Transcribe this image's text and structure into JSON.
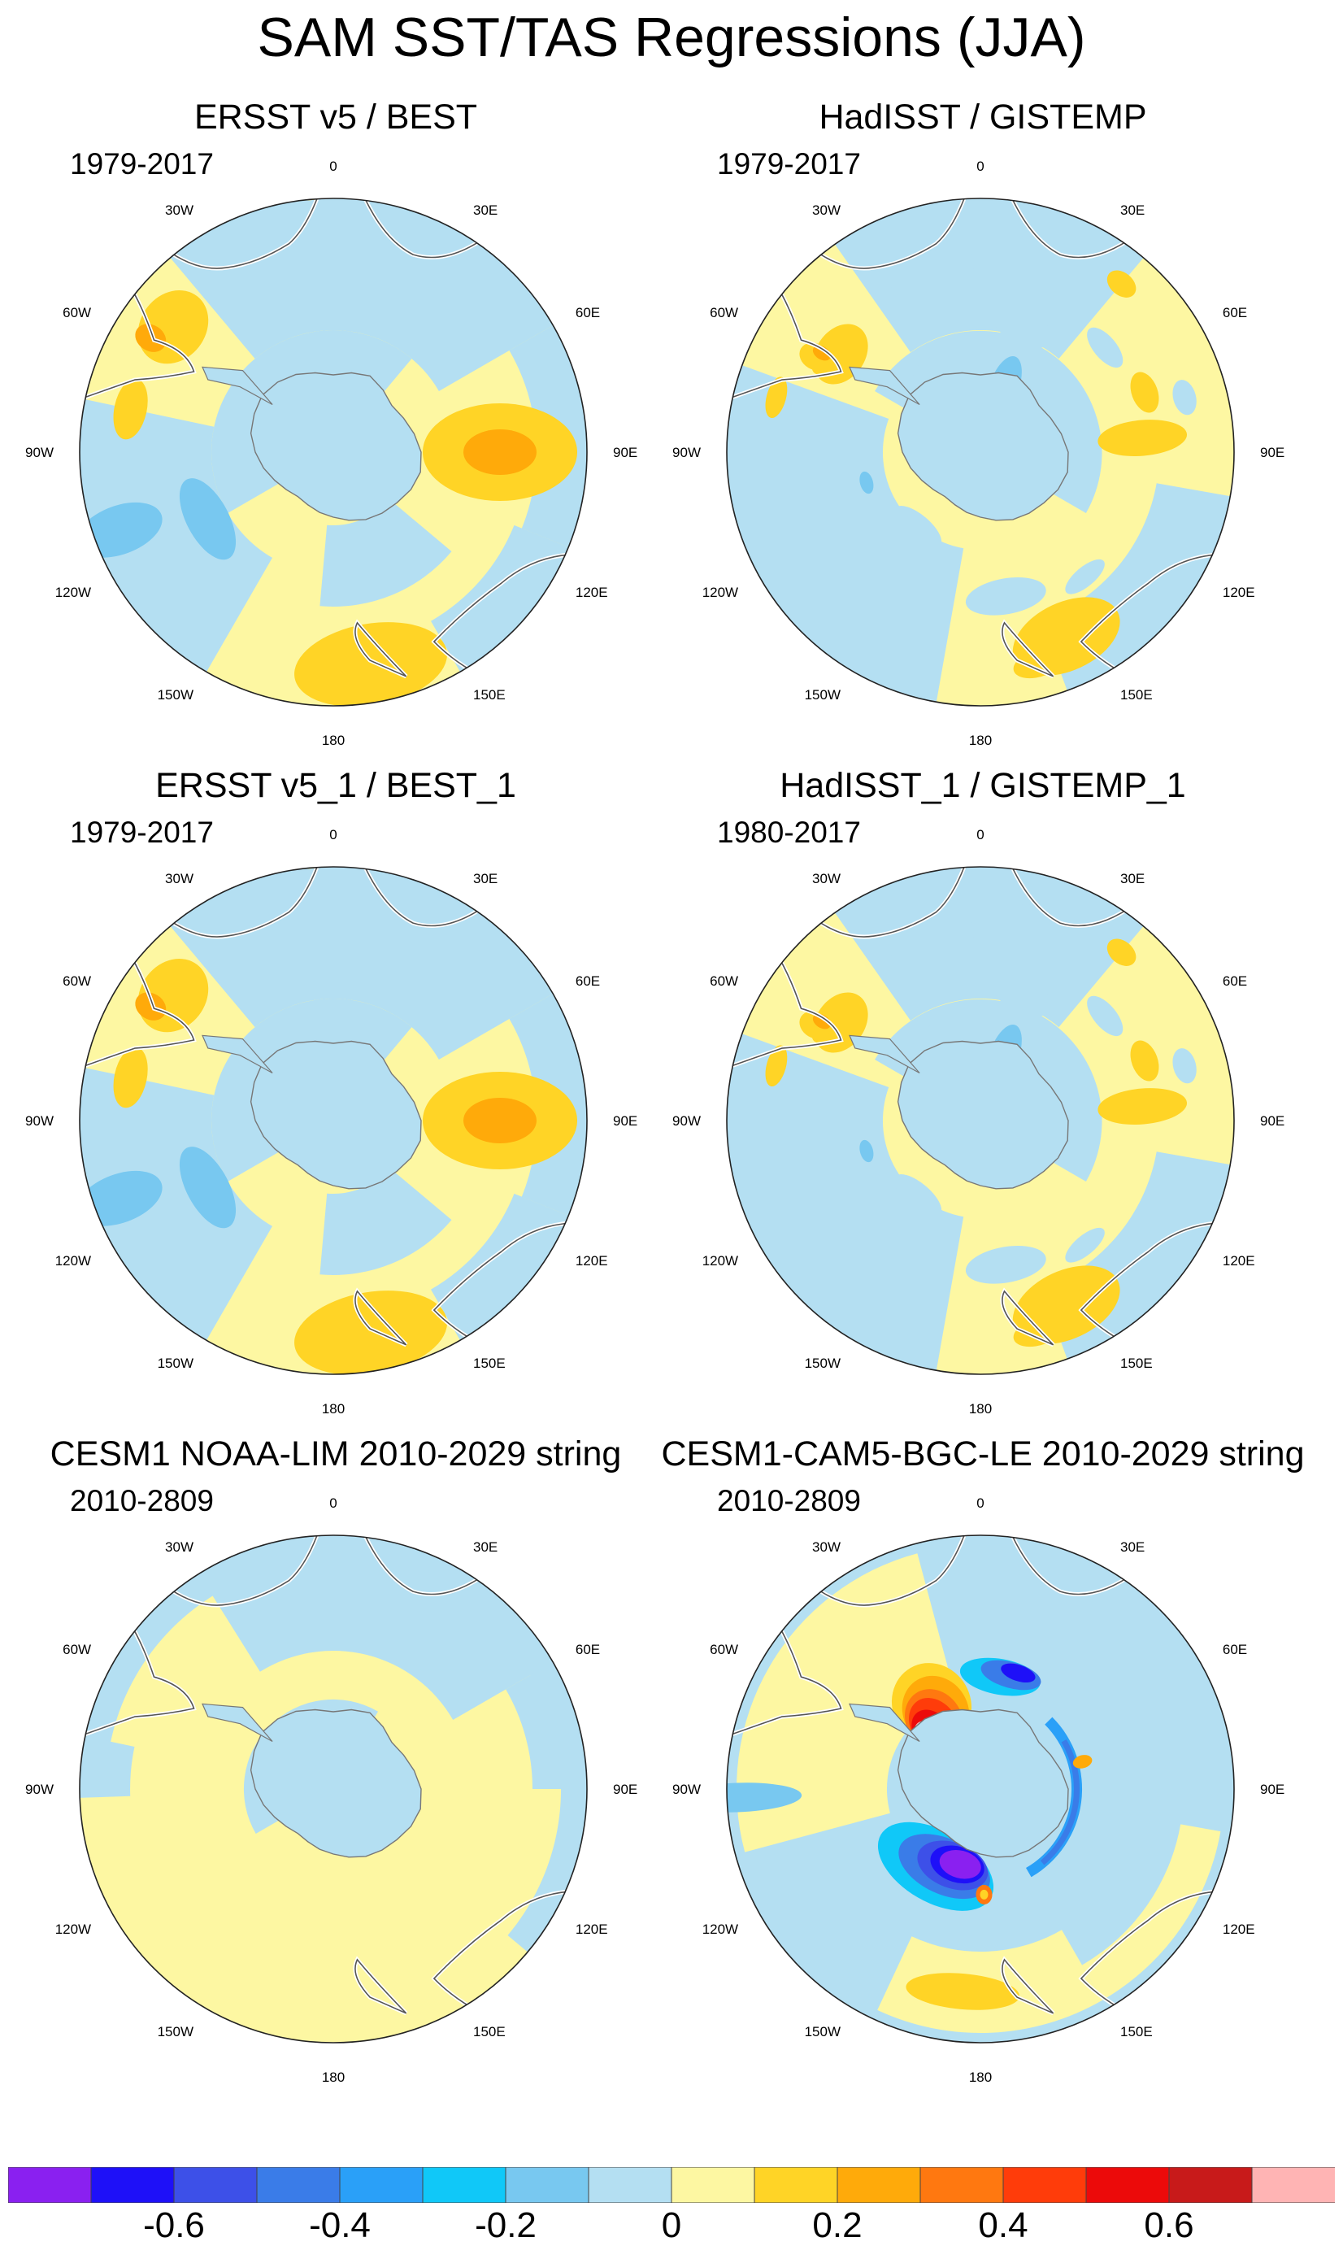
{
  "title": "SAM SST/TAS Regressions (JJA)",
  "panels": [
    {
      "title": "ERSST v5 / BEST",
      "period": "1979-2017",
      "pattern": "obs_smooth"
    },
    {
      "title": "HadISST / GISTEMP",
      "period": "1979-2017",
      "pattern": "obs_noisy"
    },
    {
      "title": "ERSST v5_1 / BEST_1",
      "period": "1979-2017",
      "pattern": "obs_smooth"
    },
    {
      "title": "HadISST_1 / GISTEMP_1",
      "period": "1980-2017",
      "pattern": "obs_noisy"
    },
    {
      "title": "CESM1 NOAA-LIM 2010-2029 string",
      "period": "2010-2809",
      "pattern": "lim_weak"
    },
    {
      "title": "CESM1-CAM5-BGC-LE 2010-2029 string",
      "period": "2010-2809",
      "pattern": "model_strong"
    }
  ],
  "longitude_labels": [
    "0",
    "30E",
    "60E",
    "90E",
    "120E",
    "150E",
    "180",
    "150W",
    "120W",
    "90W",
    "60W",
    "30W"
  ],
  "chart_data": {
    "type": "heatmap",
    "projection": "south polar stereographic",
    "variable": "SST/TAS regression on SAM index (JJA)",
    "colorbar": {
      "levels": [
        -0.7,
        -0.6,
        -0.5,
        -0.4,
        -0.3,
        -0.2,
        -0.1,
        0,
        0.1,
        0.2,
        0.3,
        0.4,
        0.5,
        0.6,
        0.7
      ],
      "tick_labels": [
        "-0.6",
        "-0.4",
        "-0.2",
        "0",
        "0.2",
        "0.4",
        "0.6"
      ],
      "tick_values": [
        -0.6,
        -0.4,
        -0.2,
        0,
        0.2,
        0.4,
        0.6
      ],
      "colors": [
        "#8a20f0",
        "#1e10f8",
        "#3d50e8",
        "#3a7ce8",
        "#2aa0f8",
        "#10c8f8",
        "#78c8f0",
        "#b4dff2",
        "#fdf7a2",
        "#ffd426",
        "#ffaa0a",
        "#ff7810",
        "#ff3c0a",
        "#ec0a0a",
        "#c81a1a",
        "#ffb4b4"
      ]
    }
  }
}
